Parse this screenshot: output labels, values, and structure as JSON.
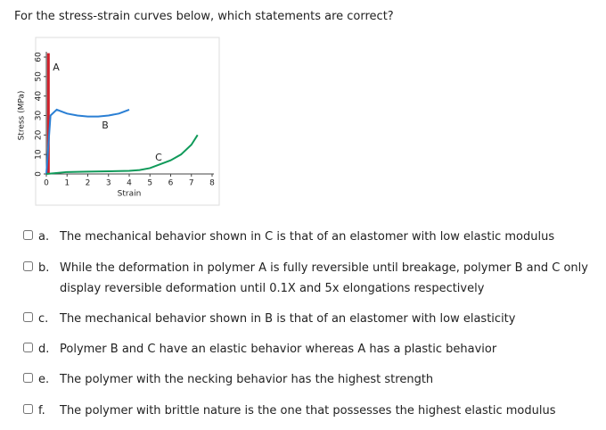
{
  "question": "For the stress-strain curves below, which statements are correct?",
  "chart_data": {
    "type": "line",
    "y_label": "Stress (MPa)",
    "x_label": "Strain",
    "xlim": [
      0,
      8
    ],
    "xticks": [
      0,
      1,
      2,
      3,
      4,
      5,
      6,
      7,
      8
    ],
    "ylim": [
      0,
      60
    ],
    "yticks": [
      0,
      10,
      20,
      30,
      40,
      50,
      60
    ],
    "series": [
      {
        "name": "A",
        "color": "#d0202a",
        "x": [
          0.1,
          0.1
        ],
        "values": [
          0,
          62
        ]
      },
      {
        "name": "B",
        "color": "#2a7fd4",
        "x": [
          0,
          0.2,
          0.5,
          1,
          1.5,
          2,
          2.5,
          3,
          3.5,
          4
        ],
        "values": [
          0,
          30,
          33,
          31,
          30,
          29.5,
          29.5,
          30,
          31,
          33
        ]
      },
      {
        "name": "C",
        "color": "#109a5a",
        "x": [
          0,
          1,
          2,
          3,
          4,
          4.5,
          5,
          5.5,
          6,
          6.5,
          7,
          7.3
        ],
        "values": [
          0,
          1,
          1.2,
          1.4,
          1.6,
          2,
          3,
          5,
          7,
          10,
          15,
          20
        ]
      }
    ]
  },
  "options": [
    {
      "letter": "a.",
      "text": "The mechanical behavior shown in C is that of an elastomer with low elastic modulus"
    },
    {
      "letter": "b.",
      "text": "While the deformation in polymer A is fully reversible until breakage, polymer B and C only display reversible deformation until 0.1X and 5x elongations respectively"
    },
    {
      "letter": "c.",
      "text": "The mechanical behavior shown in B is that of an elastomer with low elasticity"
    },
    {
      "letter": "d.",
      "text": "Polymer B and C have an elastic behavior whereas A has a plastic behavior"
    },
    {
      "letter": "e.",
      "text": "The polymer with the necking behavior has the highest strength"
    },
    {
      "letter": "f.",
      "text": "The polymer with brittle nature is the one that possesses the highest elastic modulus"
    }
  ]
}
